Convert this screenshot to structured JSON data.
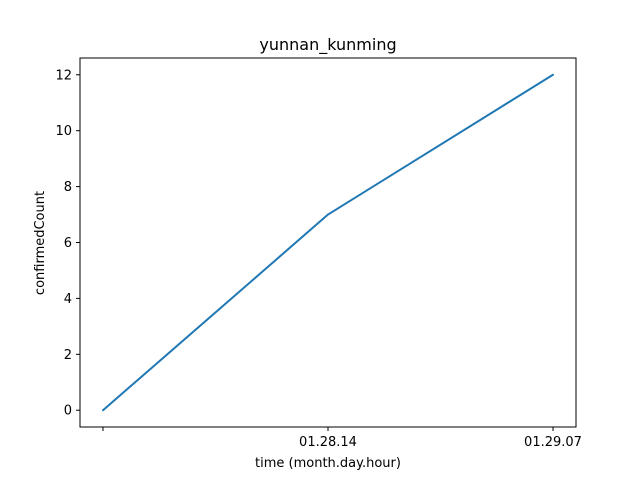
{
  "chart_data": {
    "type": "line",
    "title": "yunnan_kunming",
    "xlabel": "time (month.day.hour)",
    "ylabel": "confirmedCount",
    "categories": [
      "",
      "01.28.14",
      "01.29.07"
    ],
    "series": [
      {
        "values": [
          0,
          7,
          12
        ],
        "color": "#1f77b4"
      }
    ],
    "ylim": [
      -0.6,
      12.6
    ],
    "yticks": [
      0,
      2,
      4,
      6,
      8,
      10,
      12
    ],
    "grid": false,
    "legend": "none"
  }
}
